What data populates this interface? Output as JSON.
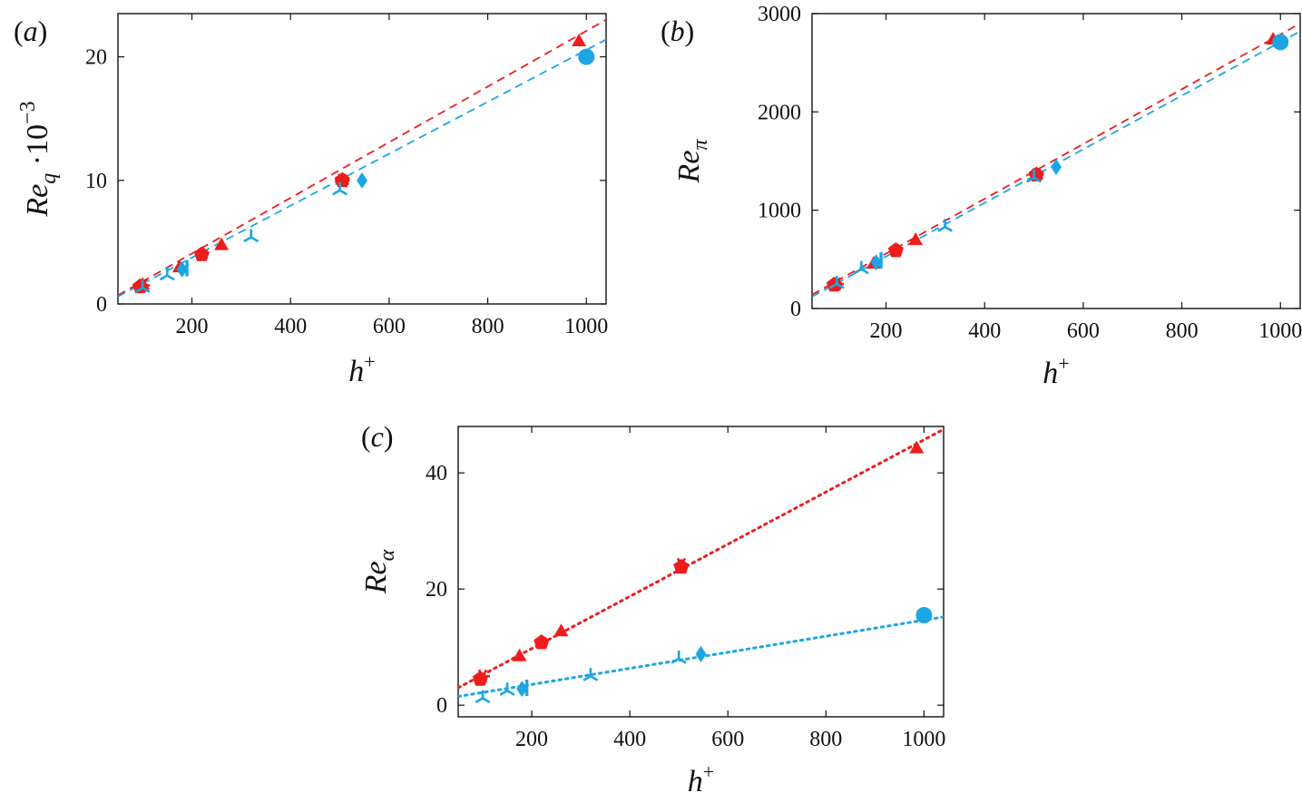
{
  "colors": {
    "red": "#ee1c1c",
    "blue": "#1ba6e3",
    "axis": "#111111"
  },
  "chart_data": [
    {
      "type": "scatter",
      "panel_label": "(a)",
      "xlabel": "h⁺",
      "ylabel": {
        "base": "Re",
        "sub": "q",
        "suffix": " ·10",
        "sup": "−3"
      },
      "xlim": [
        50,
        1040
      ],
      "ylim": [
        0,
        23.5
      ],
      "xticks": [
        200,
        400,
        600,
        800,
        1000
      ],
      "yticks": [
        0,
        10,
        20
      ],
      "fit_lines": [
        {
          "color": "red",
          "style": "dashed",
          "points": [
            [
              50,
              0.7
            ],
            [
              1040,
              23.0
            ]
          ]
        },
        {
          "color": "blue",
          "style": "dashed",
          "points": [
            [
              50,
              0.6
            ],
            [
              1040,
              21.4
            ]
          ]
        }
      ],
      "series": [
        {
          "color": "red",
          "marker": "triangle",
          "points": [
            [
              100,
              1.6
            ],
            [
              175,
              3.0
            ],
            [
              260,
              4.8
            ],
            [
              505,
              10.1
            ],
            [
              985,
              21.3
            ]
          ]
        },
        {
          "color": "red",
          "marker": "pentagon",
          "points": [
            [
              95,
              1.4
            ],
            [
              220,
              4.0
            ],
            [
              505,
              10.0
            ]
          ]
        },
        {
          "color": "red",
          "marker": "asterisk",
          "points": [
            [
              100,
              1.5
            ],
            [
              505,
              10.0
            ]
          ]
        },
        {
          "color": "blue",
          "marker": "tri",
          "points": [
            [
              100,
              1.3
            ],
            [
              150,
              2.3
            ],
            [
              320,
              5.4
            ],
            [
              500,
              9.2
            ]
          ]
        },
        {
          "color": "blue",
          "marker": "diamond",
          "points": [
            [
              180,
              2.8
            ],
            [
              545,
              10.0
            ]
          ]
        },
        {
          "color": "blue",
          "marker": "bar",
          "points": [
            [
              190,
              2.9
            ]
          ]
        },
        {
          "color": "blue",
          "marker": "circle",
          "points": [
            [
              1000,
              20.0
            ]
          ]
        }
      ]
    },
    {
      "type": "scatter",
      "panel_label": "(b)",
      "xlabel": "h⁺",
      "ylabel": {
        "base": "Re",
        "sub": "π",
        "suffix": "",
        "sup": ""
      },
      "xlim": [
        50,
        1040
      ],
      "ylim": [
        0,
        3000
      ],
      "xticks": [
        200,
        400,
        600,
        800,
        1000
      ],
      "yticks": [
        0,
        1000,
        2000,
        3000
      ],
      "fit_lines": [
        {
          "color": "red",
          "style": "dashed",
          "points": [
            [
              50,
              140
            ],
            [
              1040,
              2900
            ]
          ]
        },
        {
          "color": "blue",
          "style": "dashed",
          "points": [
            [
              50,
              120
            ],
            [
              1040,
              2820
            ]
          ]
        }
      ],
      "series": [
        {
          "color": "red",
          "marker": "triangle",
          "points": [
            [
              100,
              260
            ],
            [
              175,
              460
            ],
            [
              260,
              700
            ],
            [
              505,
              1370
            ],
            [
              985,
              2740
            ]
          ]
        },
        {
          "color": "red",
          "marker": "pentagon",
          "points": [
            [
              95,
              240
            ],
            [
              220,
              590
            ],
            [
              505,
              1360
            ]
          ]
        },
        {
          "color": "red",
          "marker": "asterisk",
          "points": [
            [
              100,
              250
            ],
            [
              505,
              1360
            ]
          ]
        },
        {
          "color": "blue",
          "marker": "tri",
          "points": [
            [
              100,
              250
            ],
            [
              150,
              400
            ],
            [
              320,
              830
            ],
            [
              500,
              1330
            ]
          ]
        },
        {
          "color": "blue",
          "marker": "diamond",
          "points": [
            [
              180,
              470
            ],
            [
              545,
              1440
            ]
          ]
        },
        {
          "color": "blue",
          "marker": "bar",
          "points": [
            [
              190,
              490
            ]
          ]
        },
        {
          "color": "blue",
          "marker": "circle",
          "points": [
            [
              1000,
              2710
            ]
          ]
        }
      ]
    },
    {
      "type": "scatter",
      "panel_label": "(c)",
      "xlabel": "h⁺",
      "ylabel": {
        "base": "Re",
        "sub": "α",
        "suffix": "",
        "sup": ""
      },
      "xlim": [
        50,
        1040
      ],
      "ylim": [
        -2,
        48
      ],
      "xticks": [
        200,
        400,
        600,
        800,
        1000
      ],
      "yticks": [
        0,
        20,
        40
      ],
      "fit_lines": [
        {
          "color": "red",
          "style": "dotted",
          "points": [
            [
              50,
              3.0
            ],
            [
              1040,
              47.5
            ]
          ]
        },
        {
          "color": "blue",
          "style": "dotted",
          "points": [
            [
              50,
              1.5
            ],
            [
              1040,
              15.2
            ]
          ]
        }
      ],
      "series": [
        {
          "color": "red",
          "marker": "triangle",
          "points": [
            [
              175,
              8.5
            ],
            [
              260,
              12.8
            ],
            [
              985,
              44.3
            ]
          ]
        },
        {
          "color": "red",
          "marker": "pentagon",
          "points": [
            [
              95,
              4.5
            ],
            [
              220,
              10.8
            ],
            [
              505,
              23.8
            ]
          ]
        },
        {
          "color": "red",
          "marker": "asterisk",
          "points": [
            [
              100,
              5.0
            ],
            [
              505,
              24.2
            ]
          ]
        },
        {
          "color": "blue",
          "marker": "tri",
          "points": [
            [
              100,
              1.2
            ],
            [
              150,
              2.5
            ],
            [
              320,
              5.0
            ],
            [
              500,
              8.0
            ]
          ]
        },
        {
          "color": "blue",
          "marker": "diamond",
          "points": [
            [
              180,
              2.8
            ],
            [
              545,
              8.8
            ]
          ]
        },
        {
          "color": "blue",
          "marker": "bar",
          "points": [
            [
              190,
              3.0
            ]
          ]
        },
        {
          "color": "blue",
          "marker": "circle",
          "points": [
            [
              1000,
              15.5
            ]
          ]
        }
      ]
    }
  ]
}
